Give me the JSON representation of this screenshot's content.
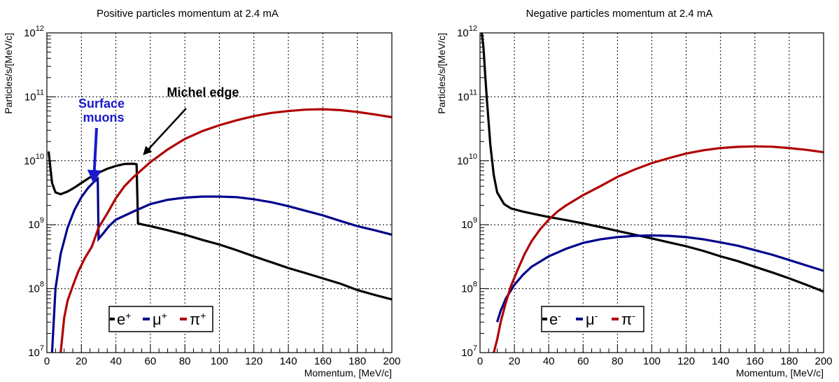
{
  "chart_data": [
    {
      "type": "line",
      "title": "Positive particles momentum at 2.4 mA",
      "xlabel": "Momentum, [MeV/c]",
      "ylabel": "Particles/s/[MeV/c]",
      "xlim": [
        0,
        200
      ],
      "ylim": [
        10000000,
        1000000000000
      ],
      "yscale": "log",
      "grid": true,
      "legend_position": "bottom-left",
      "x_ticks": [
        "0",
        "20",
        "40",
        "60",
        "80",
        "100",
        "120",
        "140",
        "160",
        "180",
        "200"
      ],
      "y_ticks": [
        {
          "base": "10",
          "exp": "7",
          "value": 10000000
        },
        {
          "base": "10",
          "exp": "8",
          "value": 100000000
        },
        {
          "base": "10",
          "exp": "9",
          "value": 1000000000
        },
        {
          "base": "10",
          "exp": "10",
          "value": 10000000000
        },
        {
          "base": "10",
          "exp": "11",
          "value": 100000000000
        },
        {
          "base": "10",
          "exp": "12",
          "value": 1000000000000
        }
      ],
      "series": [
        {
          "name": "e+",
          "legend_base": "e",
          "legend_sup": "+",
          "color": "#000000",
          "points": [
            [
              1,
              14000000000.0
            ],
            [
              3,
              4500000000.0
            ],
            [
              5,
              3200000000.0
            ],
            [
              8,
              3000000000.0
            ],
            [
              12,
              3300000000.0
            ],
            [
              16,
              3800000000.0
            ],
            [
              20,
              4500000000.0
            ],
            [
              25,
              5500000000.0
            ],
            [
              30,
              6500000000.0
            ],
            [
              35,
              7500000000.0
            ],
            [
              40,
              8300000000.0
            ],
            [
              45,
              8900000000.0
            ],
            [
              50,
              9000000000.0
            ],
            [
              52,
              8800000000.0
            ],
            [
              52.8,
              1050000000.0
            ],
            [
              56,
              1000000000.0
            ],
            [
              60,
              950000000.0
            ],
            [
              70,
              820000000.0
            ],
            [
              80,
              700000000.0
            ],
            [
              90,
              580000000.0
            ],
            [
              100,
              490000000.0
            ],
            [
              110,
              400000000.0
            ],
            [
              120,
              320000000.0
            ],
            [
              130,
              260000000.0
            ],
            [
              140,
              210000000.0
            ],
            [
              150,
              175000000.0
            ],
            [
              160,
              145000000.0
            ],
            [
              170,
              120000000.0
            ],
            [
              180,
              95000000.0
            ],
            [
              190,
              80000000.0
            ],
            [
              200,
              68000000.0
            ]
          ]
        },
        {
          "name": "μ+",
          "legend_base": "μ",
          "legend_sup": "+",
          "color": "#00008b",
          "points": [
            [
              3,
              10000000.0
            ],
            [
              5,
              100000000.0
            ],
            [
              8,
              350000000.0
            ],
            [
              12,
              900000000.0
            ],
            [
              16,
              1700000000.0
            ],
            [
              20,
              2700000000.0
            ],
            [
              24,
              3800000000.0
            ],
            [
              27,
              4600000000.0
            ],
            [
              29.5,
              5200000000.0
            ],
            [
              30,
              600000000.0
            ],
            [
              33,
              750000000.0
            ],
            [
              36,
              950000000.0
            ],
            [
              40,
              1200000000.0
            ],
            [
              50,
              1600000000.0
            ],
            [
              60,
              2100000000.0
            ],
            [
              70,
              2450000000.0
            ],
            [
              80,
              2650000000.0
            ],
            [
              90,
              2750000000.0
            ],
            [
              100,
              2750000000.0
            ],
            [
              110,
              2700000000.0
            ],
            [
              120,
              2500000000.0
            ],
            [
              130,
              2250000000.0
            ],
            [
              140,
              1950000000.0
            ],
            [
              150,
              1650000000.0
            ],
            [
              160,
              1400000000.0
            ],
            [
              170,
              1150000000.0
            ],
            [
              180,
              950000000.0
            ],
            [
              190,
              820000000.0
            ],
            [
              200,
              700000000.0
            ]
          ]
        },
        {
          "name": "π+",
          "legend_base": "π",
          "legend_sup": "+",
          "color": "#b00000",
          "points": [
            [
              8,
              10000000.0
            ],
            [
              10,
              35000000.0
            ],
            [
              12,
              65000000.0
            ],
            [
              15,
              110000000.0
            ],
            [
              18,
              180000000.0
            ],
            [
              22,
              300000000.0
            ],
            [
              26,
              450000000.0
            ],
            [
              30,
              900000000.0
            ],
            [
              35,
              1500000000.0
            ],
            [
              40,
              2600000000.0
            ],
            [
              45,
              4000000000.0
            ],
            [
              50,
              5500000000.0
            ],
            [
              60,
              9500000000.0
            ],
            [
              70,
              15000000000.0
            ],
            [
              80,
              22000000000.0
            ],
            [
              90,
              29000000000.0
            ],
            [
              100,
              36000000000.0
            ],
            [
              110,
              43000000000.0
            ],
            [
              120,
              50000000000.0
            ],
            [
              130,
              56000000000.0
            ],
            [
              140,
              60000000000.0
            ],
            [
              150,
              63000000000.0
            ],
            [
              160,
              64000000000.0
            ],
            [
              170,
              62000000000.0
            ],
            [
              180,
              58000000000.0
            ],
            [
              190,
              53000000000.0
            ],
            [
              200,
              48000000000.0
            ]
          ]
        }
      ],
      "annotations": [
        {
          "text": "Surface",
          "color": "#1a1acc"
        },
        {
          "text": "muons",
          "color": "#1a1acc"
        },
        {
          "text": "Michel edge",
          "color": "#000000"
        }
      ]
    },
    {
      "type": "line",
      "title": "Negative particles momentum at 2.4 mA",
      "xlabel": "Momentum, [MeV/c]",
      "ylabel": "Particles/s/[MeV/c]",
      "xlim": [
        0,
        200
      ],
      "ylim": [
        10000000,
        1000000000000
      ],
      "yscale": "log",
      "grid": true,
      "legend_position": "bottom-left",
      "x_ticks": [
        "0",
        "20",
        "40",
        "60",
        "80",
        "100",
        "120",
        "140",
        "160",
        "180",
        "200"
      ],
      "y_ticks": [
        {
          "base": "10",
          "exp": "7",
          "value": 10000000
        },
        {
          "base": "10",
          "exp": "8",
          "value": 100000000
        },
        {
          "base": "10",
          "exp": "9",
          "value": 1000000000
        },
        {
          "base": "10",
          "exp": "10",
          "value": 10000000000
        },
        {
          "base": "10",
          "exp": "11",
          "value": 100000000000
        },
        {
          "base": "10",
          "exp": "12",
          "value": 1000000000000
        }
      ],
      "series": [
        {
          "name": "e-",
          "legend_base": "e",
          "legend_sup": "-",
          "color": "#000000",
          "points": [
            [
              1,
              1000000000000.0
            ],
            [
              2,
              600000000000.0
            ],
            [
              3,
              220000000000.0
            ],
            [
              4,
              90000000000.0
            ],
            [
              5,
              40000000000.0
            ],
            [
              6,
              18000000000.0
            ],
            [
              8,
              6000000000.0
            ],
            [
              10,
              3200000000.0
            ],
            [
              14,
              2100000000.0
            ],
            [
              18,
              1800000000.0
            ],
            [
              25,
              1600000000.0
            ],
            [
              30,
              1500000000.0
            ],
            [
              40,
              1320000000.0
            ],
            [
              50,
              1180000000.0
            ],
            [
              60,
              1050000000.0
            ],
            [
              70,
              920000000.0
            ],
            [
              80,
              800000000.0
            ],
            [
              90,
              700000000.0
            ],
            [
              100,
              610000000.0
            ],
            [
              110,
              530000000.0
            ],
            [
              120,
              460000000.0
            ],
            [
              130,
              390000000.0
            ],
            [
              140,
              320000000.0
            ],
            [
              150,
              270000000.0
            ],
            [
              160,
              220000000.0
            ],
            [
              170,
              180000000.0
            ],
            [
              180,
              145000000.0
            ],
            [
              190,
              115000000.0
            ],
            [
              200,
              90000000.0
            ]
          ]
        },
        {
          "name": "μ-",
          "legend_base": "μ",
          "legend_sup": "-",
          "color": "#00008b",
          "points": [
            [
              10,
              30000000.0
            ],
            [
              12,
              45000000.0
            ],
            [
              15,
              70000000.0
            ],
            [
              20,
              115000000.0
            ],
            [
              25,
              165000000.0
            ],
            [
              30,
              220000000.0
            ],
            [
              40,
              320000000.0
            ],
            [
              50,
              420000000.0
            ],
            [
              60,
              520000000.0
            ],
            [
              70,
              590000000.0
            ],
            [
              80,
              640000000.0
            ],
            [
              90,
              670000000.0
            ],
            [
              100,
              680000000.0
            ],
            [
              110,
              670000000.0
            ],
            [
              120,
              640000000.0
            ],
            [
              130,
              590000000.0
            ],
            [
              140,
              530000000.0
            ],
            [
              150,
              470000000.0
            ],
            [
              160,
              400000000.0
            ],
            [
              170,
              340000000.0
            ],
            [
              180,
              280000000.0
            ],
            [
              190,
              230000000.0
            ],
            [
              200,
              190000000.0
            ]
          ]
        },
        {
          "name": "π-",
          "legend_base": "π",
          "legend_sup": "-",
          "color": "#b00000",
          "points": [
            [
              8,
              10000000.0
            ],
            [
              10,
              16000000.0
            ],
            [
              12,
              30000000.0
            ],
            [
              15,
              60000000.0
            ],
            [
              18,
              110000000.0
            ],
            [
              22,
              200000000.0
            ],
            [
              26,
              350000000.0
            ],
            [
              30,
              550000000.0
            ],
            [
              35,
              850000000.0
            ],
            [
              40,
              1200000000.0
            ],
            [
              45,
              1600000000.0
            ],
            [
              50,
              2000000000.0
            ],
            [
              60,
              2900000000.0
            ],
            [
              70,
              4000000000.0
            ],
            [
              80,
              5600000000.0
            ],
            [
              90,
              7300000000.0
            ],
            [
              100,
              9200000000.0
            ],
            [
              110,
              11000000000.0
            ],
            [
              120,
              13000000000.0
            ],
            [
              130,
              14600000000.0
            ],
            [
              140,
              15800000000.0
            ],
            [
              150,
              16500000000.0
            ],
            [
              160,
              16800000000.0
            ],
            [
              170,
              16600000000.0
            ],
            [
              180,
              15800000000.0
            ],
            [
              190,
              14800000000.0
            ],
            [
              200,
              13600000000.0
            ]
          ]
        }
      ],
      "annotations": []
    }
  ]
}
